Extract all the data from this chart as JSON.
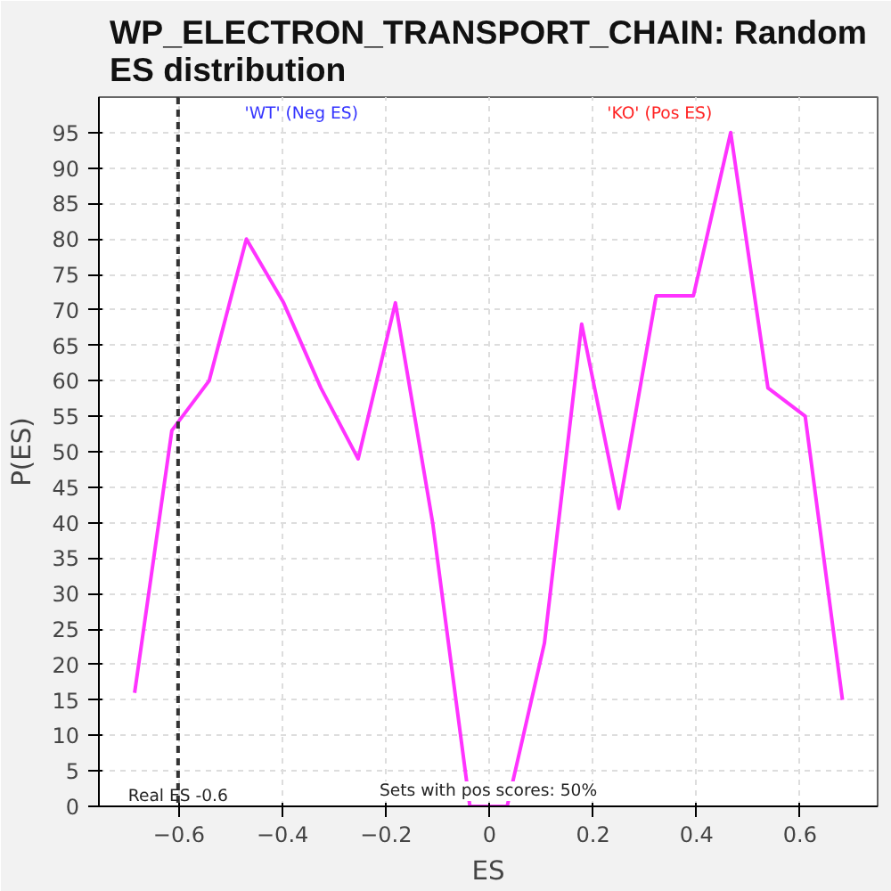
{
  "chart_data": {
    "type": "line",
    "title": "WP_ELECTRON_TRANSPORT_CHAIN: Random ES distribution",
    "xlabel": "ES",
    "ylabel": "P(ES)",
    "x": [
      -0.686,
      -0.614,
      -0.542,
      -0.47,
      -0.398,
      -0.326,
      -0.254,
      -0.182,
      -0.11,
      -0.038,
      0.034,
      0.106,
      0.178,
      0.25,
      0.322,
      0.394,
      0.466,
      0.538,
      0.61,
      0.682
    ],
    "series": [
      {
        "color": "#ff33ff",
        "values": [
          16,
          53,
          60,
          80,
          71,
          59,
          49,
          71,
          40,
          0,
          0,
          23,
          68,
          42,
          72,
          72,
          95,
          59,
          55,
          15
        ]
      }
    ],
    "xlim": [
      -0.755,
      0.75
    ],
    "ylim": [
      0,
      100
    ],
    "xticks": [
      -0.6,
      -0.4,
      -0.2,
      0.0,
      0.2,
      0.4,
      0.6
    ],
    "yticks": [
      0,
      5,
      10,
      15,
      20,
      25,
      30,
      35,
      40,
      45,
      50,
      55,
      60,
      65,
      70,
      75,
      80,
      85,
      90,
      95
    ],
    "ref_lines": [
      {
        "axis": "x",
        "value": -0.602,
        "label": "Real ES -0.6",
        "color": "#333333",
        "line_style": "dashed"
      }
    ],
    "annotations": [
      "'WT' (Neg ES)",
      "'KO' (Pos ES)",
      "Sets with pos scores: 50%"
    ],
    "grid": true,
    "marker": "none",
    "line_style": "solid"
  }
}
